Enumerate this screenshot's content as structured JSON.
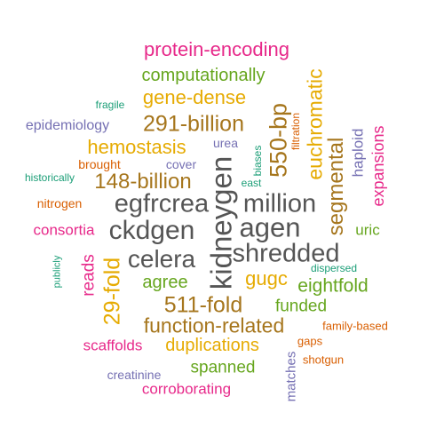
{
  "colors": {
    "magenta": "#e7298a",
    "olive": "#a6761d",
    "gold": "#e6ab02",
    "green": "#66a61e",
    "purple": "#7570b3",
    "orange": "#d95f02",
    "teal": "#1b9e77",
    "gray": "#555555"
  },
  "words": [
    {
      "text": "protein-encoding",
      "color": "#e7298a"
    },
    {
      "text": "computationally",
      "color": "#66a61e"
    },
    {
      "text": "euchromatic",
      "color": "#e6ab02"
    },
    {
      "text": "gene-dense",
      "color": "#e6ab02"
    },
    {
      "text": "fragile",
      "color": "#1b9e77"
    },
    {
      "text": "550-bp",
      "color": "#a6761d"
    },
    {
      "text": "filtration",
      "color": "#d95f02"
    },
    {
      "text": "epidemiology",
      "color": "#7570b3"
    },
    {
      "text": "291-billion",
      "color": "#a6761d"
    },
    {
      "text": "segmental",
      "color": "#a6761d"
    },
    {
      "text": "haploid",
      "color": "#7570b3"
    },
    {
      "text": "expansions",
      "color": "#e7298a"
    },
    {
      "text": "hemostasis",
      "color": "#e6ab02"
    },
    {
      "text": "urea",
      "color": "#7570b3"
    },
    {
      "text": "biases",
      "color": "#1b9e77"
    },
    {
      "text": "historically",
      "color": "#1b9e77"
    },
    {
      "text": "brought",
      "color": "#d95f02"
    },
    {
      "text": "cover",
      "color": "#7570b3"
    },
    {
      "text": "kidneygen",
      "color": "#555555"
    },
    {
      "text": "east",
      "color": "#1b9e77"
    },
    {
      "text": "148-billion",
      "color": "#a6761d"
    },
    {
      "text": "nitrogen",
      "color": "#d95f02"
    },
    {
      "text": "egfrcrea",
      "color": "#555555"
    },
    {
      "text": "million",
      "color": "#555555"
    },
    {
      "text": "consortia",
      "color": "#e7298a"
    },
    {
      "text": "ckdgen",
      "color": "#555555"
    },
    {
      "text": "agen",
      "color": "#555555"
    },
    {
      "text": "uric",
      "color": "#66a61e"
    },
    {
      "text": "publicly",
      "color": "#1b9e77"
    },
    {
      "text": "celera",
      "color": "#555555"
    },
    {
      "text": "shredded",
      "color": "#555555"
    },
    {
      "text": "dispersed",
      "color": "#1b9e77"
    },
    {
      "text": "reads",
      "color": "#e7298a"
    },
    {
      "text": "29-fold",
      "color": "#e6ab02"
    },
    {
      "text": "agree",
      "color": "#66a61e"
    },
    {
      "text": "gugc",
      "color": "#e6ab02"
    },
    {
      "text": "eightfold",
      "color": "#66a61e"
    },
    {
      "text": "511-fold",
      "color": "#a6761d"
    },
    {
      "text": "funded",
      "color": "#66a61e"
    },
    {
      "text": "function-related",
      "color": "#a6761d"
    },
    {
      "text": "family-based",
      "color": "#d95f02"
    },
    {
      "text": "scaffolds",
      "color": "#e7298a"
    },
    {
      "text": "duplications",
      "color": "#e6ab02"
    },
    {
      "text": "gaps",
      "color": "#d95f02"
    },
    {
      "text": "shotgun",
      "color": "#d95f02"
    },
    {
      "text": "spanned",
      "color": "#66a61e"
    },
    {
      "text": "creatinine",
      "color": "#7570b3"
    },
    {
      "text": "matches",
      "color": "#7570b3"
    },
    {
      "text": "corroborating",
      "color": "#e7298a"
    }
  ]
}
